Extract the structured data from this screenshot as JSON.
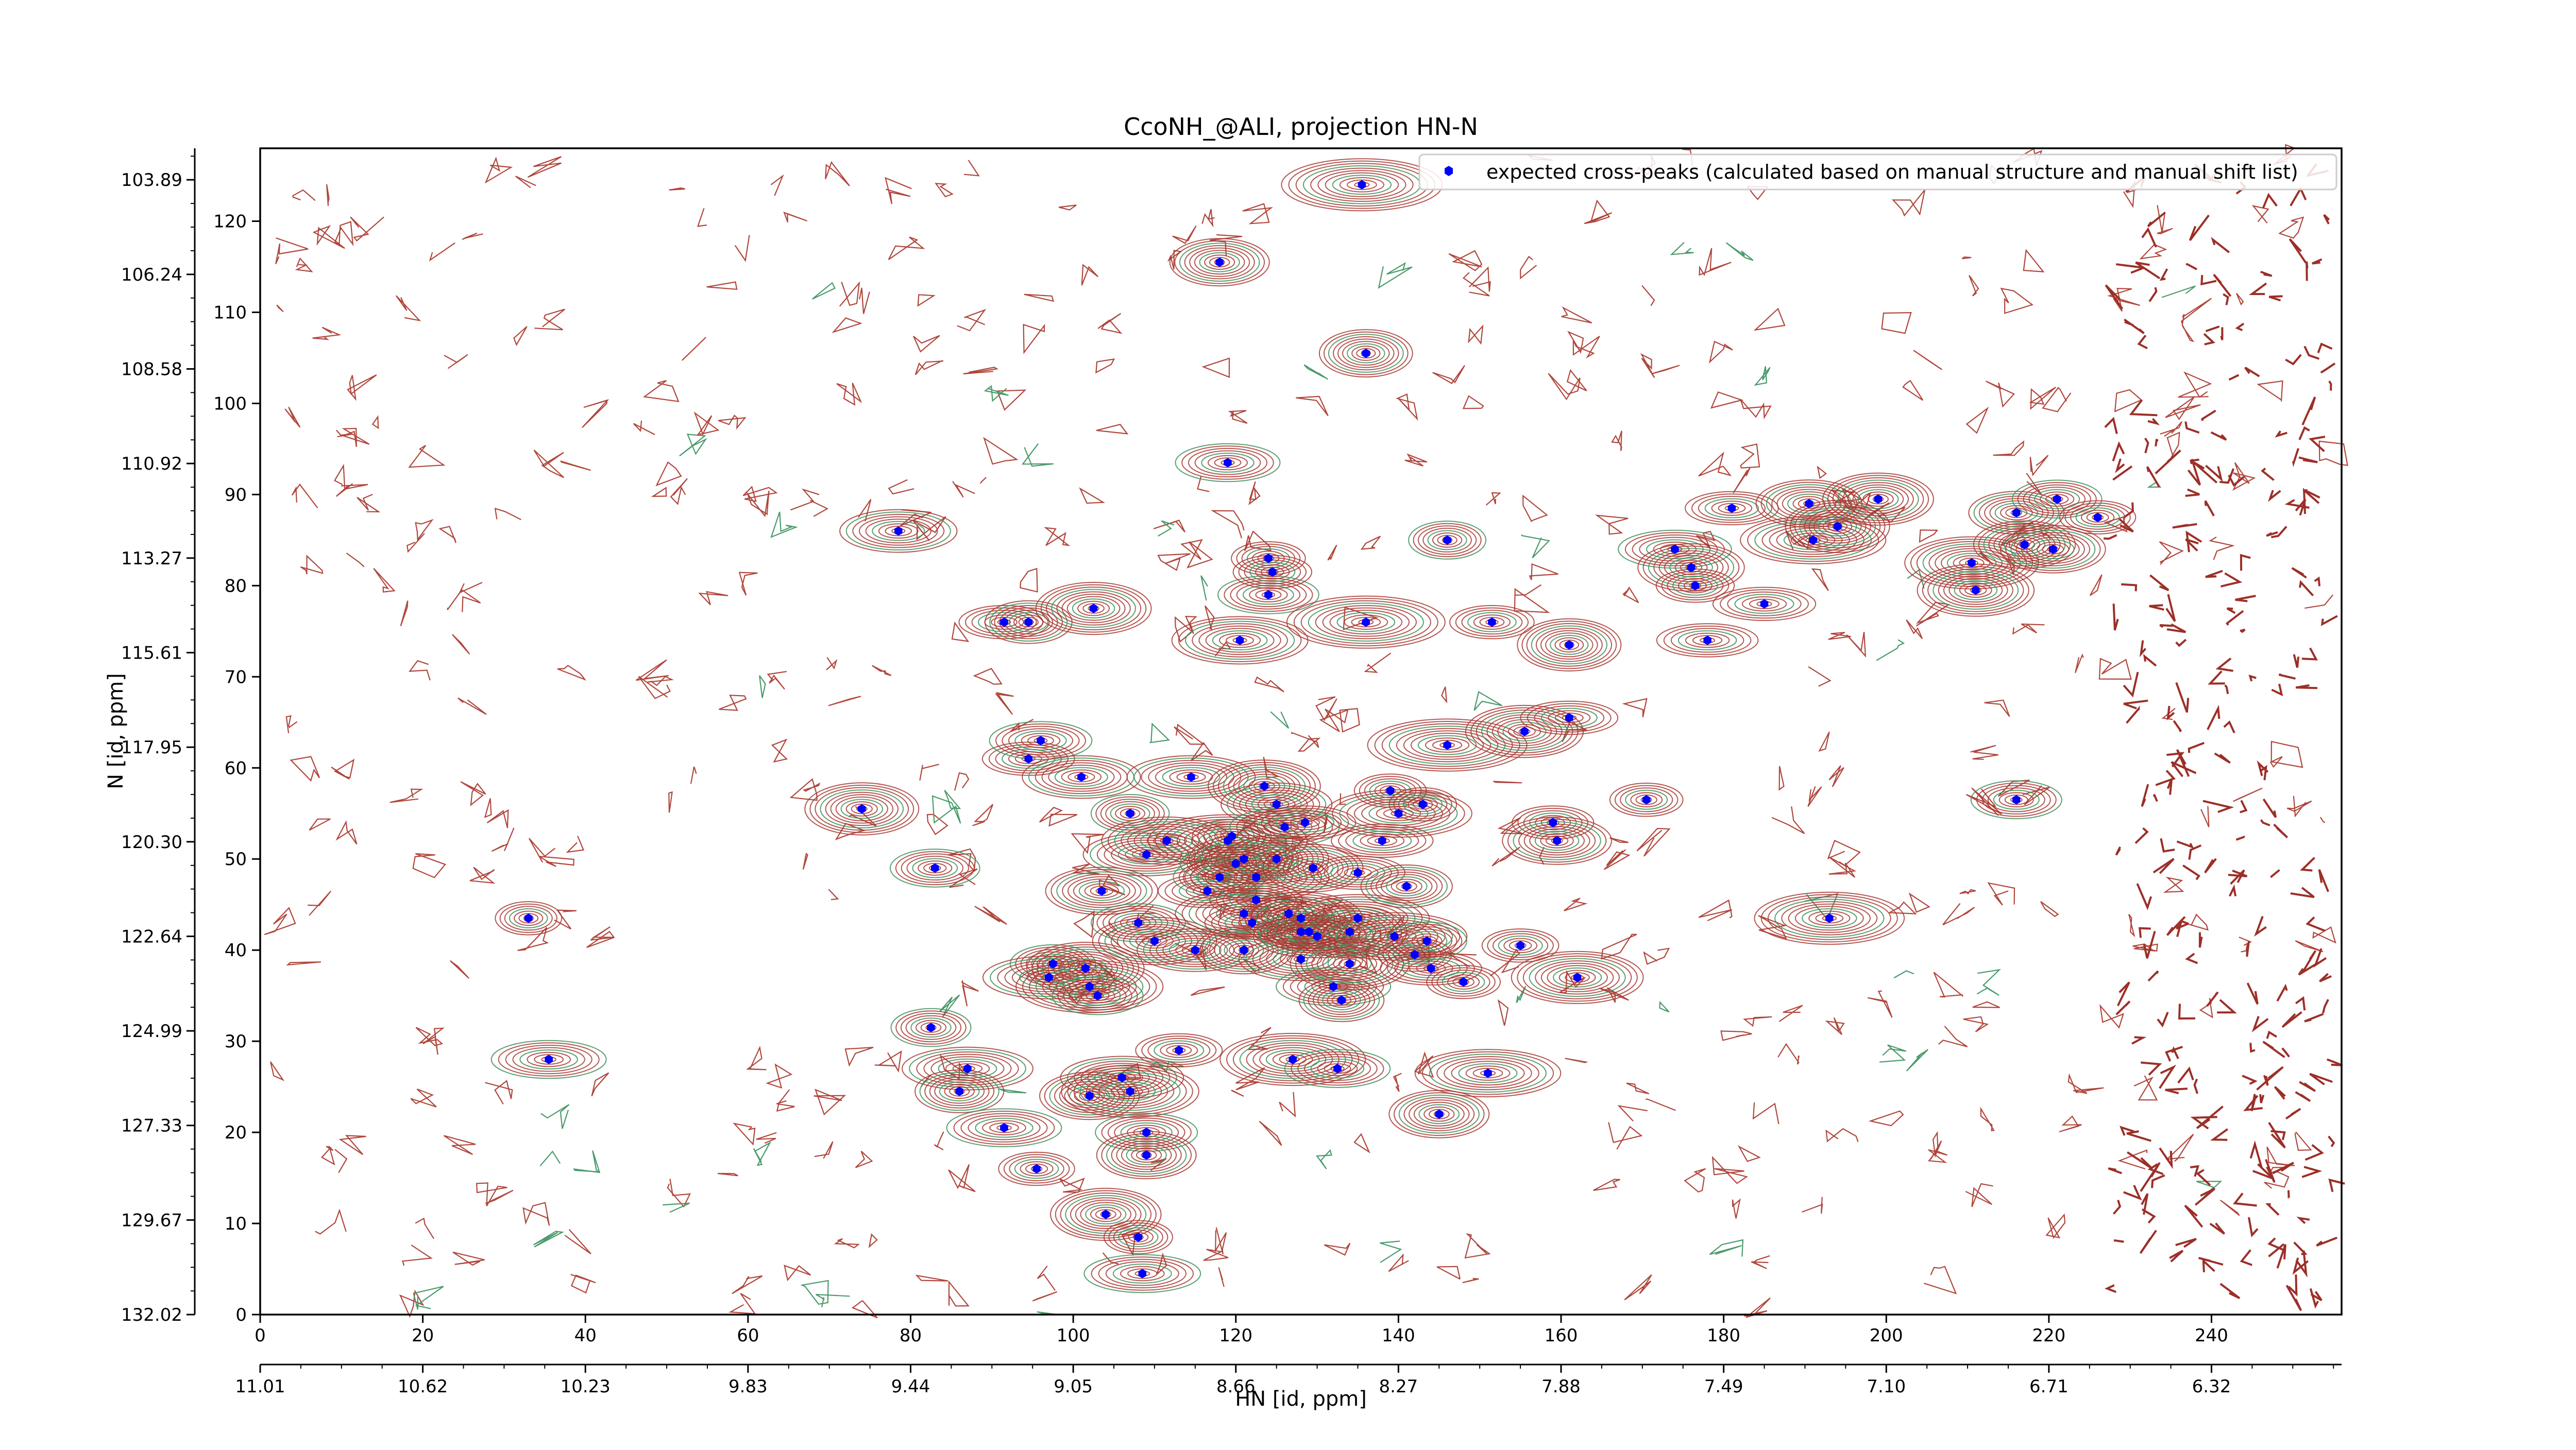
{
  "chart_data": {
    "type": "scatter",
    "title": "CcoNH_@ALI, projection HN-N",
    "xlabel": "HN [id, ppm]",
    "ylabel": "N [id, ppm]",
    "xlim": [
      0,
      256
    ],
    "ylim": [
      0,
      128
    ],
    "grid": false,
    "legend_position": "top-right",
    "x_ticks": [
      0,
      20,
      40,
      60,
      80,
      100,
      120,
      140,
      160,
      180,
      200,
      220,
      240
    ],
    "y_ticks": [
      0,
      10,
      20,
      30,
      40,
      50,
      60,
      70,
      80,
      90,
      100,
      110,
      120
    ],
    "ppm_x_labels": [
      {
        "pos": 0,
        "label": "11.01"
      },
      {
        "pos": 20,
        "label": "10.62"
      },
      {
        "pos": 40,
        "label": "10.23"
      },
      {
        "pos": 60,
        "label": "9.83"
      },
      {
        "pos": 80,
        "label": "9.44"
      },
      {
        "pos": 100,
        "label": "9.05"
      },
      {
        "pos": 120,
        "label": "8.66"
      },
      {
        "pos": 140,
        "label": "8.27"
      },
      {
        "pos": 160,
        "label": "7.88"
      },
      {
        "pos": 180,
        "label": "7.49"
      },
      {
        "pos": 200,
        "label": "7.10"
      },
      {
        "pos": 220,
        "label": "6.71"
      },
      {
        "pos": 240,
        "label": "6.32"
      }
    ],
    "ppm_y_labels": [
      {
        "pos": 0,
        "label": "132.02"
      },
      {
        "pos": 12,
        "label": "129.67"
      },
      {
        "pos": 24,
        "label": "127.33"
      },
      {
        "pos": 36,
        "label": "124.99"
      },
      {
        "pos": 48,
        "label": "122.64"
      },
      {
        "pos": 60,
        "label": "120.30"
      },
      {
        "pos": 72,
        "label": "117.95"
      },
      {
        "pos": 84,
        "label": "115.61"
      },
      {
        "pos": 96,
        "label": "113.27"
      },
      {
        "pos": 108,
        "label": "110.92"
      },
      {
        "pos": 120,
        "label": "108.58"
      },
      {
        "pos": 132,
        "label": "106.24"
      },
      {
        "pos": 144,
        "label": "103.89"
      }
    ],
    "series": [
      {
        "name": "expected cross-peaks (calculated based on manual structure and manual shift list)",
        "color": "#0000ff",
        "marker": "hexagon",
        "points": [
          [
            33,
            43.5
          ],
          [
            35.5,
            28
          ],
          [
            74,
            55.5
          ],
          [
            78.5,
            86
          ],
          [
            83,
            49
          ],
          [
            82.5,
            31.5
          ],
          [
            87,
            27
          ],
          [
            86,
            24.5
          ],
          [
            91.5,
            20.5
          ],
          [
            91.5,
            76
          ],
          [
            94.5,
            76
          ],
          [
            95.5,
            16
          ],
          [
            94.5,
            61
          ],
          [
            96,
            63
          ],
          [
            97.5,
            38.5
          ],
          [
            97,
            37
          ],
          [
            101.5,
            38
          ],
          [
            102,
            36
          ],
          [
            103,
            35
          ],
          [
            101,
            59
          ],
          [
            102,
            24
          ],
          [
            103.5,
            46.5
          ],
          [
            102.5,
            77.5
          ],
          [
            104,
            11
          ],
          [
            106,
            26
          ],
          [
            107,
            55
          ],
          [
            107,
            24.5
          ],
          [
            108,
            43
          ],
          [
            109,
            50.5
          ],
          [
            108,
            8.5
          ],
          [
            109,
            20
          ],
          [
            109,
            17.5
          ],
          [
            108.5,
            4.5
          ],
          [
            110,
            41
          ],
          [
            111.5,
            52
          ],
          [
            113,
            29
          ],
          [
            115,
            40
          ],
          [
            114.5,
            59
          ],
          [
            116.5,
            46.5
          ],
          [
            118,
            115.5
          ],
          [
            118,
            48
          ],
          [
            119,
            52
          ],
          [
            120,
            49.5
          ],
          [
            121,
            50
          ],
          [
            119.5,
            52.5
          ],
          [
            119,
            93.5
          ],
          [
            120.5,
            74
          ],
          [
            121,
            44
          ],
          [
            121,
            40
          ],
          [
            122,
            43
          ],
          [
            122.5,
            45.5
          ],
          [
            122.5,
            48
          ],
          [
            123.5,
            58
          ],
          [
            124,
            83
          ],
          [
            124,
            79
          ],
          [
            124.5,
            81.5
          ],
          [
            125,
            50
          ],
          [
            125,
            56
          ],
          [
            126,
            53.5
          ],
          [
            126.5,
            44
          ],
          [
            127,
            28
          ],
          [
            128,
            42
          ],
          [
            128,
            39
          ],
          [
            128,
            43.5
          ],
          [
            128.5,
            54
          ],
          [
            129,
            42
          ],
          [
            129.5,
            49
          ],
          [
            130,
            41.5
          ],
          [
            132,
            36
          ],
          [
            132.5,
            27
          ],
          [
            133,
            34.5
          ],
          [
            134,
            42
          ],
          [
            134,
            38.5
          ],
          [
            135,
            48.5
          ],
          [
            135,
            43.5
          ],
          [
            136,
            105.5
          ],
          [
            136,
            76
          ],
          [
            138,
            52
          ],
          [
            139,
            57.5
          ],
          [
            139.5,
            41.5
          ],
          [
            140,
            55
          ],
          [
            141,
            47
          ],
          [
            142,
            39.5
          ],
          [
            143,
            56
          ],
          [
            143.5,
            41
          ],
          [
            144,
            38
          ],
          [
            145,
            22
          ],
          [
            146,
            62.5
          ],
          [
            146,
            85
          ],
          [
            148,
            36.5
          ],
          [
            151,
            26.5
          ],
          [
            151.5,
            76
          ],
          [
            155.5,
            64
          ],
          [
            155,
            40.5
          ],
          [
            159,
            54
          ],
          [
            159.5,
            52
          ],
          [
            161,
            65.5
          ],
          [
            161,
            73.5
          ],
          [
            162,
            37
          ],
          [
            170.5,
            56.5
          ],
          [
            174,
            84
          ],
          [
            176,
            82
          ],
          [
            176.5,
            80
          ],
          [
            178,
            74
          ],
          [
            181,
            88.5
          ],
          [
            185,
            78
          ],
          [
            190.5,
            89
          ],
          [
            191,
            85
          ],
          [
            193,
            43.5
          ],
          [
            194,
            86.5
          ],
          [
            199,
            89.5
          ],
          [
            210.5,
            82.5
          ],
          [
            211,
            79.5
          ],
          [
            216,
            56.5
          ],
          [
            216,
            88
          ],
          [
            217,
            84.5
          ],
          [
            220.5,
            84
          ],
          [
            221,
            89.5
          ],
          [
            226,
            87.5
          ],
          [
            135.5,
            124
          ]
        ]
      }
    ]
  }
}
